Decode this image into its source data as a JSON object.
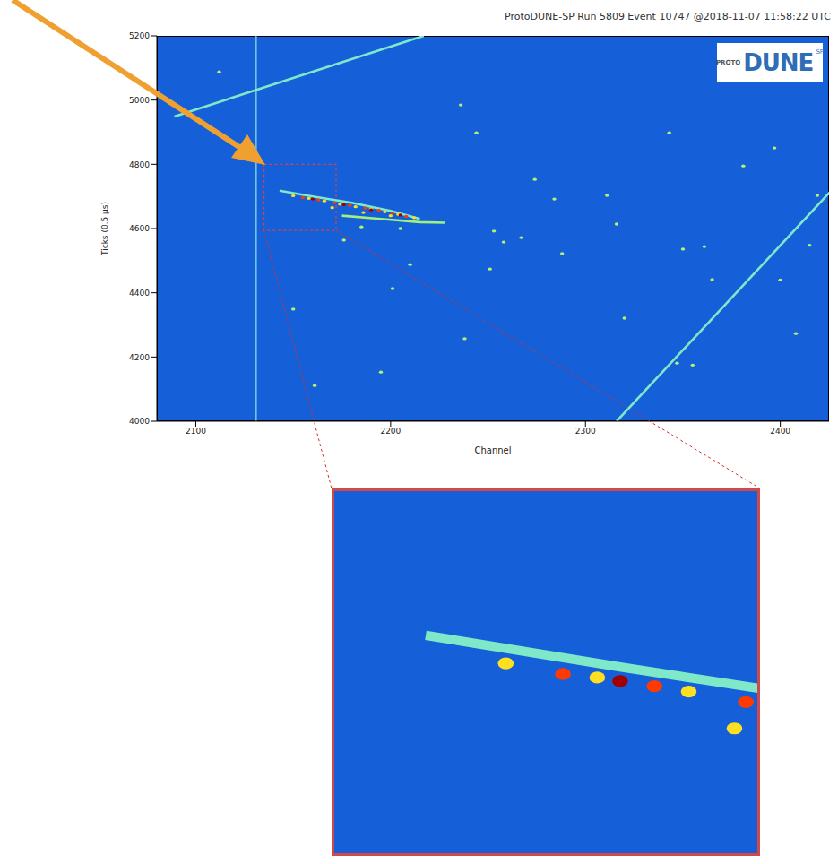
{
  "chart_data": [
    {
      "type": "scatter",
      "title": "ProtoDUNE-SP Run 5809 Event 10747 @2018-11-07 11:58:22 UTC",
      "logo": [
        "PROTO",
        "DUNE",
        "SP"
      ],
      "x_label": "Channel",
      "y_label": "Ticks (0.5 µs)",
      "xlim": [
        2080,
        2425
      ],
      "ylim": [
        4000,
        5200
      ],
      "xticks": [
        2100,
        2200,
        2300,
        2400
      ],
      "yticks": [
        4000,
        4200,
        4400,
        4600,
        4800,
        5000,
        5200
      ],
      "grid": false,
      "series": [
        {
          "type": "line",
          "color": "#8fe8e0",
          "x": [
            2131,
            2131
          ],
          "values": [
            4000,
            5200
          ]
        },
        {
          "type": "line",
          "color": "#7fe8c8",
          "x": [
            2089,
            2217
          ],
          "values": [
            4949,
            5200
          ]
        },
        {
          "type": "line",
          "color": "#7fe8c8",
          "x": [
            2316,
            2430
          ],
          "values": [
            4000,
            4743
          ]
        },
        {
          "type": "line",
          "color": "#7fe8c8",
          "x": [
            2143,
            2160,
            2180,
            2200,
            2215
          ],
          "values": [
            4718,
            4700,
            4680,
            4655,
            4630
          ]
        },
        {
          "type": "line",
          "color": "#a0f080",
          "x": [
            2175,
            2195,
            2215,
            2228
          ],
          "values": [
            4640,
            4630,
            4620,
            4618
          ]
        },
        {
          "type": "scatter",
          "color": "#ffe020",
          "x": [
            2150,
            2158,
            2166,
            2174,
            2182,
            2190,
            2197,
            2204,
            2212,
            2170,
            2186,
            2200
          ],
          "values": [
            4702,
            4694,
            4686,
            4676,
            4668,
            4661,
            4652,
            4644,
            4634,
            4665,
            4650,
            4640
          ]
        },
        {
          "type": "scatter",
          "color": "#ff3a00",
          "x": [
            2155,
            2163,
            2171,
            2179,
            2187,
            2194,
            2201,
            2208
          ],
          "values": [
            4696,
            4689,
            4680,
            4672,
            4664,
            4657,
            4648,
            4638
          ]
        },
        {
          "type": "scatter",
          "color": "#a00000",
          "x": [
            2160,
            2176,
            2190,
            2205
          ],
          "values": [
            4692,
            4674,
            4658,
            4642
          ]
        },
        {
          "type": "scatter",
          "color": "#b8f070",
          "x": [
            2236,
            2244,
            2274,
            2284,
            2311,
            2343,
            2381,
            2397,
            2419,
            2253,
            2258,
            2267,
            2288,
            2251,
            2210,
            2201,
            2350,
            2361,
            2365,
            2408,
            2347,
            2238,
            2320,
            2150,
            2195,
            2176,
            2112,
            2161,
            2316,
            2355,
            2400,
            2415,
            2185,
            2205
          ],
          "values": [
            4985,
            4898,
            4753,
            4692,
            4703,
            4898,
            4795,
            4851,
            4703,
            4592,
            4558,
            4572,
            4522,
            4474,
            4488,
            4413,
            4536,
            4544,
            4441,
            4273,
            4181,
            4257,
            4321,
            4349,
            4153,
            4564,
            5088,
            4111,
            4614,
            4175,
            4440,
            4548,
            4605,
            4600
          ]
        }
      ]
    },
    {
      "type": "scatter",
      "xlim": [
        2135,
        2172
      ],
      "ylim": [
        4594,
        4800
      ],
      "tick_labels": false
    }
  ]
}
